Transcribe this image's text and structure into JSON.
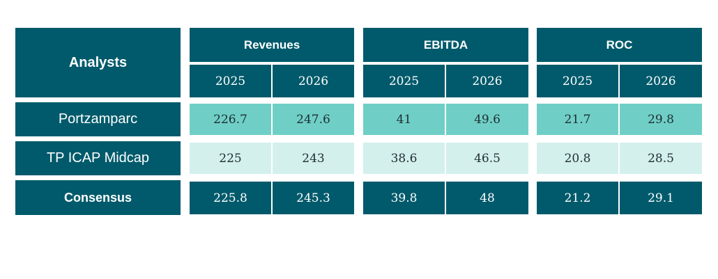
{
  "chart_data": {
    "type": "table",
    "corner_header": "Analysts",
    "groups": [
      {
        "label": "Revenues",
        "years": [
          "2025",
          "2026"
        ]
      },
      {
        "label": "EBITDA",
        "years": [
          "2025",
          "2026"
        ]
      },
      {
        "label": "ROC",
        "years": [
          "2025",
          "2026"
        ]
      }
    ],
    "rows": [
      {
        "label": "Portzamparc",
        "values": [
          "226.7",
          "247.6",
          "41",
          "49.6",
          "21.7",
          "29.8"
        ]
      },
      {
        "label": "TP ICAP Midcap",
        "values": [
          "225",
          "243",
          "38.6",
          "46.5",
          "20.8",
          "28.5"
        ]
      },
      {
        "label": "Consensus",
        "values": [
          "225.8",
          "245.3",
          "39.8",
          "48",
          "21.2",
          "29.1"
        ]
      }
    ]
  },
  "colors": {
    "header": "#005a6b",
    "portzamparc_row": "#6fcfc6",
    "tp_icap_row": "#d3f0ed",
    "consensus_row": "#005a6b"
  }
}
